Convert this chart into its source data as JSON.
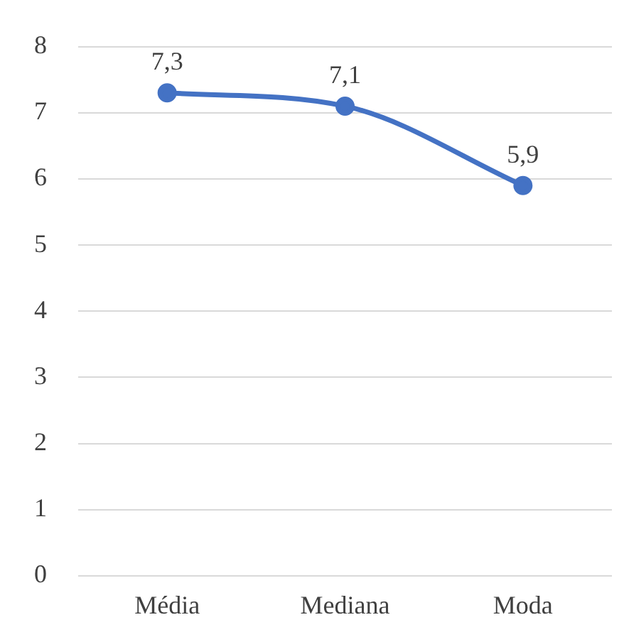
{
  "chart_data": {
    "type": "line",
    "categories": [
      "Média",
      "Mediana",
      "Moda"
    ],
    "series": [
      {
        "color": "#4472c4",
        "values": [
          7.3,
          7.1,
          5.9
        ],
        "value_labels": [
          "7,3",
          "7,1",
          "5,9"
        ]
      }
    ],
    "ylim": [
      0,
      8
    ],
    "yticks": [
      0,
      1,
      2,
      3,
      4,
      5,
      6,
      7,
      8
    ],
    "grid": "y",
    "legend": false,
    "marker": "circle",
    "line_style": "solid"
  }
}
